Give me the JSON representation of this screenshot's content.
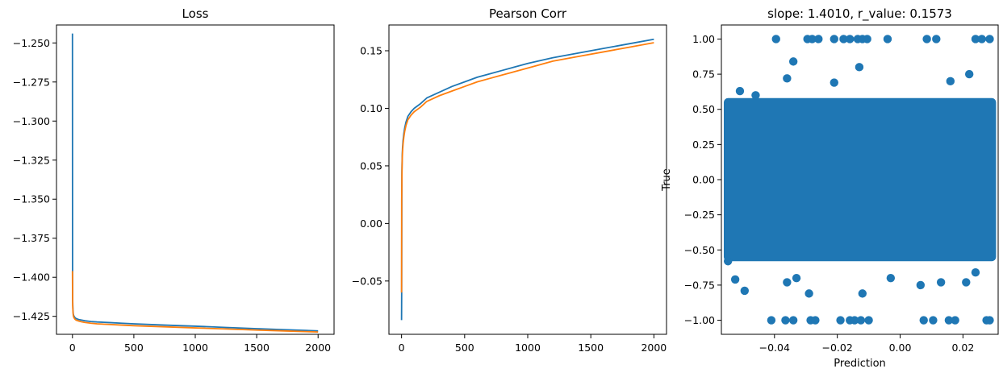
{
  "colors": {
    "series_train": "#1f77b4",
    "series_val": "#ff7f0e",
    "scatter": "#1f77b4",
    "axes": "#000000"
  },
  "chart_data": [
    {
      "type": "line",
      "title": "Loss",
      "xlabel": "",
      "ylabel": "",
      "xlim": [
        -130,
        2130
      ],
      "ylim": [
        -1.4365,
        -1.2385
      ],
      "grid": false,
      "xticks": [
        0,
        500,
        1000,
        1500,
        2000
      ],
      "xtick_labels": [
        "0",
        "500",
        "1000",
        "1500",
        "2000"
      ],
      "yticks": [
        -1.425,
        -1.4,
        -1.375,
        -1.35,
        -1.325,
        -1.3,
        -1.275,
        -1.25
      ],
      "ytick_labels": [
        "−1.425",
        "−1.400",
        "−1.375",
        "−1.350",
        "−1.325",
        "−1.300",
        "−1.275",
        "−1.250"
      ],
      "series": [
        {
          "color": "#1f77b4",
          "x": [
            0,
            1,
            2,
            4,
            7,
            10,
            15,
            20,
            30,
            50,
            75,
            100,
            150,
            200,
            300,
            400,
            500,
            750,
            1000,
            1250,
            1500,
            1750,
            2000
          ],
          "y": [
            -1.244,
            -1.395,
            -1.415,
            -1.421,
            -1.4235,
            -1.4245,
            -1.4252,
            -1.4258,
            -1.4264,
            -1.427,
            -1.4274,
            -1.4278,
            -1.4283,
            -1.4286,
            -1.429,
            -1.4294,
            -1.4298,
            -1.4306,
            -1.4313,
            -1.4321,
            -1.4329,
            -1.4336,
            -1.4343
          ]
        },
        {
          "color": "#ff7f0e",
          "x": [
            0,
            1,
            2,
            4,
            7,
            10,
            15,
            20,
            30,
            50,
            75,
            100,
            150,
            200,
            300,
            400,
            500,
            750,
            1000,
            1250,
            1500,
            1750,
            2000
          ],
          "y": [
            -1.396,
            -1.41,
            -1.418,
            -1.422,
            -1.4245,
            -1.4255,
            -1.4262,
            -1.4268,
            -1.4274,
            -1.428,
            -1.4285,
            -1.4289,
            -1.4294,
            -1.4298,
            -1.4302,
            -1.4306,
            -1.431,
            -1.4317,
            -1.4324,
            -1.4331,
            -1.4338,
            -1.4344,
            -1.435
          ]
        }
      ]
    },
    {
      "type": "line",
      "title": "Pearson Corr",
      "xlabel": "",
      "ylabel": "",
      "xlim": [
        -100,
        2100
      ],
      "ylim": [
        -0.0963,
        0.1724
      ],
      "grid": false,
      "xticks": [
        0,
        500,
        1000,
        1500,
        2000
      ],
      "xtick_labels": [
        "0",
        "500",
        "1000",
        "1500",
        "2000"
      ],
      "yticks": [
        -0.05,
        0.0,
        0.05,
        0.1,
        0.15
      ],
      "ytick_labels": [
        "−0.05",
        "0.00",
        "0.05",
        "0.10",
        "0.15"
      ],
      "series": [
        {
          "color": "#1f77b4",
          "x": [
            0,
            1,
            2,
            3,
            5,
            8,
            12,
            18,
            25,
            35,
            50,
            75,
            100,
            150,
            200,
            300,
            400,
            500,
            600,
            700,
            800,
            1000,
            1200,
            1400,
            1600,
            1800,
            2000
          ],
          "y": [
            -0.084,
            -0.06,
            0.024,
            0.045,
            0.058,
            0.066,
            0.072,
            0.078,
            0.083,
            0.088,
            0.093,
            0.097,
            0.1,
            0.104,
            0.109,
            0.114,
            0.119,
            0.123,
            0.127,
            0.13,
            0.133,
            0.139,
            0.144,
            0.148,
            0.152,
            0.156,
            0.16
          ]
        },
        {
          "color": "#ff7f0e",
          "x": [
            0,
            1,
            2,
            3,
            5,
            8,
            12,
            18,
            25,
            35,
            50,
            75,
            100,
            150,
            200,
            300,
            400,
            500,
            600,
            700,
            800,
            1000,
            1200,
            1400,
            1600,
            1800,
            2000
          ],
          "y": [
            -0.06,
            0.02,
            0.03,
            0.042,
            0.055,
            0.063,
            0.069,
            0.075,
            0.08,
            0.085,
            0.09,
            0.094,
            0.097,
            0.101,
            0.106,
            0.111,
            0.115,
            0.119,
            0.123,
            0.126,
            0.129,
            0.135,
            0.141,
            0.145,
            0.149,
            0.153,
            0.157
          ]
        }
      ]
    },
    {
      "type": "scatter",
      "title": "slope: 1.4010, r_value: 0.1573",
      "xlabel": "Prediction",
      "ylabel": "True",
      "xlim": [
        -0.0569,
        0.0312
      ],
      "ylim": [
        -1.1,
        1.1
      ],
      "grid": false,
      "xticks": [
        -0.04,
        -0.02,
        0.0,
        0.02
      ],
      "xtick_labels": [
        "−0.04",
        "−0.02",
        "0.00",
        "0.02"
      ],
      "yticks": [
        -1.0,
        -0.75,
        -0.5,
        -0.25,
        0.0,
        0.25,
        0.5,
        0.75,
        1.0
      ],
      "ytick_labels": [
        "−1.00",
        "−0.75",
        "−0.50",
        "−0.25",
        "0.00",
        "0.25",
        "0.50",
        "0.75",
        "1.00"
      ],
      "color": "#1f77b4",
      "dense_region": {
        "x_min": -0.0548,
        "x_max": 0.0292,
        "y_min": -0.55,
        "y_max": 0.55
      },
      "points": [
        [
          -0.0395,
          1.0
        ],
        [
          -0.0295,
          1.0
        ],
        [
          -0.028,
          1.0
        ],
        [
          -0.026,
          1.0
        ],
        [
          -0.021,
          1.0
        ],
        [
          -0.018,
          1.0
        ],
        [
          -0.016,
          1.0
        ],
        [
          -0.0135,
          1.0
        ],
        [
          -0.012,
          1.0
        ],
        [
          -0.0105,
          1.0
        ],
        [
          -0.004,
          1.0
        ],
        [
          0.0085,
          1.0
        ],
        [
          0.0115,
          1.0
        ],
        [
          0.024,
          1.0
        ],
        [
          0.026,
          1.0
        ],
        [
          0.0285,
          1.0
        ],
        [
          -0.034,
          0.84
        ],
        [
          -0.013,
          0.8
        ],
        [
          0.022,
          0.75
        ],
        [
          -0.036,
          0.72
        ],
        [
          -0.046,
          0.6
        ],
        [
          -0.051,
          0.63
        ],
        [
          0.016,
          0.7
        ],
        [
          -0.021,
          0.69
        ],
        [
          -0.0548,
          -0.58
        ],
        [
          -0.0525,
          -0.71
        ],
        [
          -0.0495,
          -0.79
        ],
        [
          -0.036,
          -0.73
        ],
        [
          -0.033,
          -0.7
        ],
        [
          -0.029,
          -0.81
        ],
        [
          -0.012,
          -0.81
        ],
        [
          -0.003,
          -0.7
        ],
        [
          0.0065,
          -0.75
        ],
        [
          0.013,
          -0.73
        ],
        [
          0.021,
          -0.73
        ],
        [
          0.024,
          -0.66
        ],
        [
          -0.041,
          -1.0
        ],
        [
          -0.0365,
          -1.0
        ],
        [
          -0.034,
          -1.0
        ],
        [
          -0.0285,
          -1.0
        ],
        [
          -0.027,
          -1.0
        ],
        [
          -0.019,
          -1.0
        ],
        [
          -0.016,
          -1.0
        ],
        [
          -0.0145,
          -1.0
        ],
        [
          -0.0125,
          -1.0
        ],
        [
          -0.01,
          -1.0
        ],
        [
          0.0075,
          -1.0
        ],
        [
          0.0105,
          -1.0
        ],
        [
          0.0155,
          -1.0
        ],
        [
          0.0175,
          -1.0
        ],
        [
          0.0275,
          -1.0
        ],
        [
          0.0285,
          -1.0
        ]
      ]
    }
  ]
}
